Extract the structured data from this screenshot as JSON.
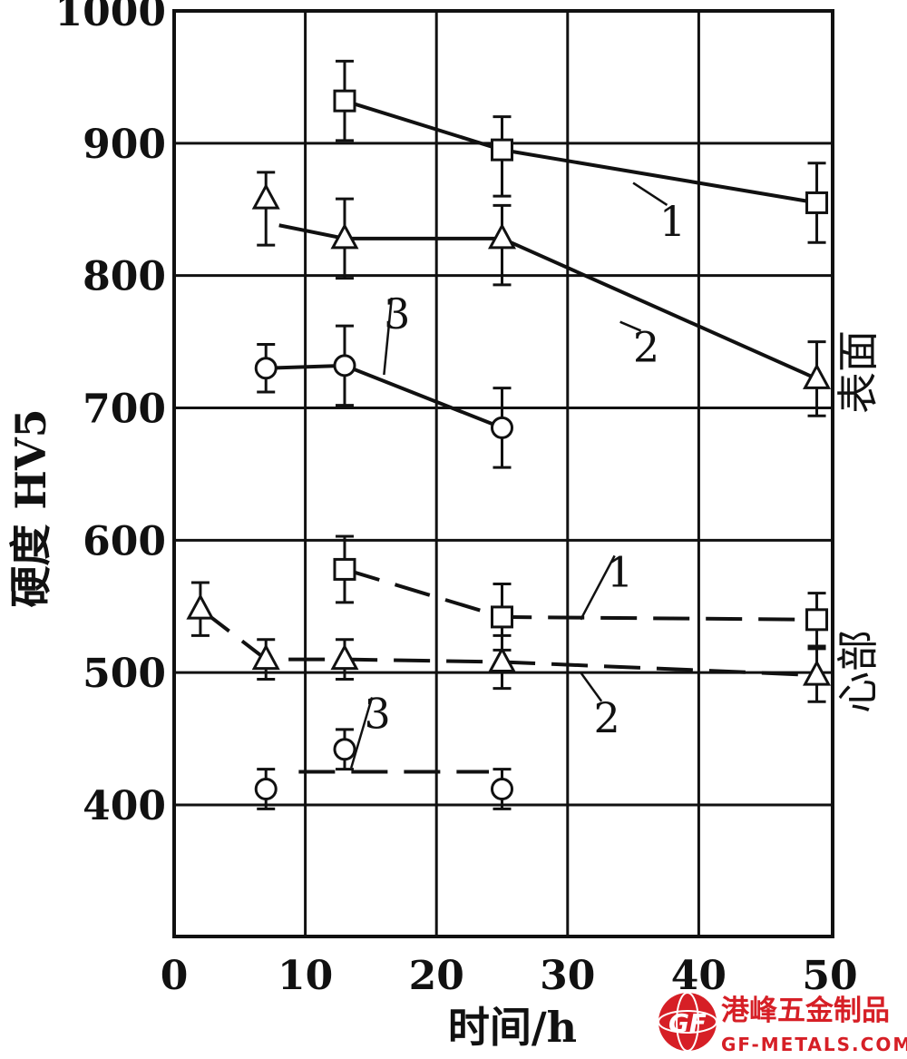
{
  "chart_data": {
    "type": "line",
    "xlabel": "时间/h",
    "ylabel": "硬度 HV5",
    "xlim": [
      0,
      50
    ],
    "ylim": [
      300,
      1000
    ],
    "x_ticks": [
      "0",
      "10",
      "20",
      "30",
      "40",
      "50"
    ],
    "y_ticks": [
      "400",
      "500",
      "600",
      "700",
      "800",
      "900",
      "1000"
    ],
    "grid": true,
    "group_labels": {
      "surface": "表面",
      "core": "心部"
    },
    "series": [
      {
        "id": "s1",
        "group": "surface",
        "label": "1",
        "marker": "square",
        "dashed": false,
        "x": [
          13,
          25,
          49
        ],
        "y": [
          932,
          895,
          855
        ],
        "err_hi": [
          30,
          25,
          30
        ],
        "err_lo": [
          30,
          35,
          30
        ]
      },
      {
        "id": "s2",
        "group": "surface",
        "label": "2",
        "marker": "triangle",
        "dashed": false,
        "x": [
          7,
          13,
          25,
          49
        ],
        "y": [
          858,
          828,
          828,
          722
        ],
        "err_hi": [
          20,
          30,
          25,
          28
        ],
        "err_lo": [
          35,
          30,
          35,
          28
        ],
        "connected_from": 1,
        "line_start": [
          8,
          838
        ]
      },
      {
        "id": "s3",
        "group": "surface",
        "label": "3",
        "marker": "circle",
        "dashed": false,
        "x": [
          7,
          13,
          25
        ],
        "y": [
          730,
          732,
          685
        ],
        "err_hi": [
          18,
          30,
          30
        ],
        "err_lo": [
          18,
          30,
          30
        ]
      },
      {
        "id": "c1",
        "group": "core",
        "label": "1",
        "marker": "square",
        "dashed": true,
        "x": [
          13,
          25,
          49
        ],
        "y": [
          578,
          542,
          540
        ],
        "err_hi": [
          25,
          25,
          20
        ],
        "err_lo": [
          25,
          25,
          20
        ]
      },
      {
        "id": "c2",
        "group": "core",
        "label": "2",
        "marker": "triangle",
        "dashed": true,
        "x": [
          2,
          7,
          13,
          25,
          49
        ],
        "y": [
          548,
          510,
          510,
          508,
          498
        ],
        "err_hi": [
          20,
          15,
          15,
          20,
          20
        ],
        "err_lo": [
          20,
          15,
          15,
          20,
          20
        ]
      },
      {
        "id": "c3",
        "group": "core",
        "label": "3",
        "marker": "circle",
        "dashed": true,
        "x": [
          7,
          13,
          25
        ],
        "y": [
          412,
          442,
          412
        ],
        "err_hi": [
          15,
          15,
          15
        ],
        "err_lo": [
          15,
          15,
          15
        ],
        "line_only": [
          [
            9.5,
            425
          ],
          [
            24,
            425
          ]
        ]
      }
    ],
    "annotations": [
      {
        "text": "1",
        "series": "s1",
        "at": [
          38,
          830
        ],
        "leader_to": [
          35,
          870
        ]
      },
      {
        "text": "2",
        "series": "s2",
        "at": [
          36,
          735
        ],
        "leader_to": [
          34,
          765
        ]
      },
      {
        "text": "3",
        "series": "s3",
        "at": [
          17,
          760
        ],
        "leader_to": [
          16,
          725
        ]
      },
      {
        "text": "1",
        "series": "c1",
        "at": [
          34,
          565
        ],
        "leader_to": [
          31,
          540
        ]
      },
      {
        "text": "2",
        "series": "c2",
        "at": [
          33,
          455
        ],
        "leader_to": [
          31,
          500
        ]
      },
      {
        "text": "3",
        "series": "c3",
        "at": [
          15.5,
          458
        ],
        "leader_to": [
          13.5,
          428
        ]
      }
    ]
  },
  "watermark": {
    "name_cn": "港峰五金制品",
    "name_en": "GF-METALS.COM",
    "logo_text": "GF",
    "logo_color": "#d61f26"
  }
}
